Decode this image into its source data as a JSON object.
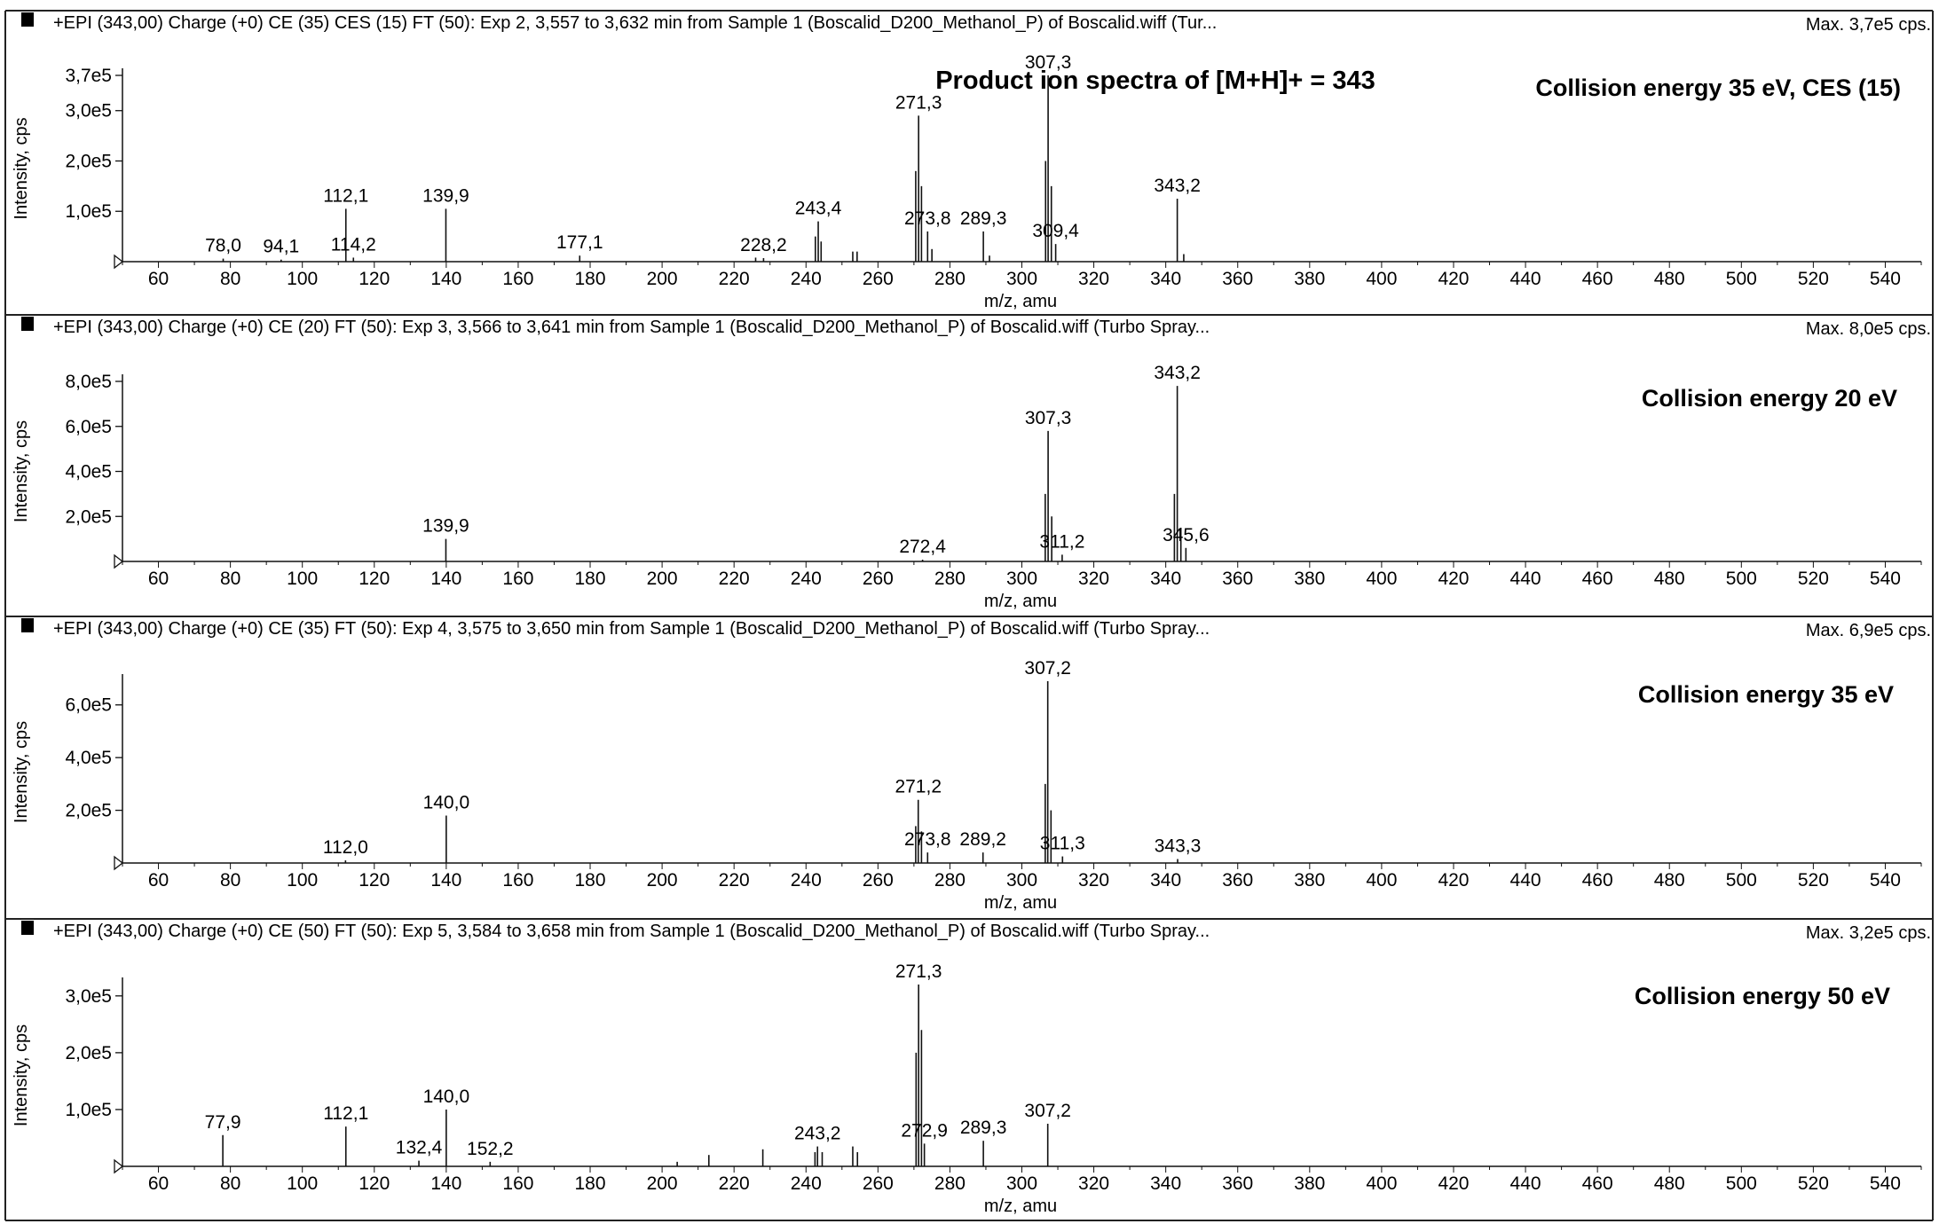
{
  "figure_title": "Product ion spectra of [M+H]+ = 343",
  "chart_data": [
    {
      "type": "bar",
      "header": "+EPI (343,00) Charge (+0) CE (35) CES (15) FT (50): Exp 2, 3,557 to 3,632 min from Sample 1 (Boscalid_D200_Methanol_P) of Boscalid.wiff (Tur...",
      "max_label": "Max. 3,7e5 cps.",
      "condition_label": "Collision energy 35 eV, CES (15)",
      "xlabel": "m/z, amu",
      "ylabel": "Intensity, cps",
      "xlim": [
        50,
        550
      ],
      "ylim": [
        0,
        370000
      ],
      "x_ticks": [
        60,
        80,
        100,
        120,
        140,
        160,
        180,
        200,
        220,
        240,
        260,
        280,
        300,
        320,
        340,
        360,
        380,
        400,
        420,
        440,
        460,
        480,
        500,
        520,
        540
      ],
      "y_ticks": [
        {
          "value": 100000,
          "label": "1,0e5"
        },
        {
          "value": 200000,
          "label": "2,0e5"
        },
        {
          "value": 300000,
          "label": "3,0e5"
        },
        {
          "value": 370000,
          "label": "3,7e5"
        }
      ],
      "peaks": [
        {
          "x": 78.0,
          "y": 6000,
          "label": "78,0"
        },
        {
          "x": 94.1,
          "y": 4000,
          "label": "94,1"
        },
        {
          "x": 112.1,
          "y": 105000,
          "label": "112,1"
        },
        {
          "x": 114.2,
          "y": 8000,
          "label": "114,2"
        },
        {
          "x": 139.9,
          "y": 105000,
          "label": "139,9"
        },
        {
          "x": 177.1,
          "y": 12000,
          "label": "177,1"
        },
        {
          "x": 226.0,
          "y": 8000,
          "label": ""
        },
        {
          "x": 228.2,
          "y": 7000,
          "label": "228,2"
        },
        {
          "x": 242.6,
          "y": 50000,
          "label": ""
        },
        {
          "x": 243.4,
          "y": 80000,
          "label": "243,4"
        },
        {
          "x": 244.2,
          "y": 40000,
          "label": ""
        },
        {
          "x": 253.0,
          "y": 20000,
          "label": ""
        },
        {
          "x": 254.2,
          "y": 20000,
          "label": ""
        },
        {
          "x": 270.5,
          "y": 180000,
          "label": ""
        },
        {
          "x": 271.3,
          "y": 290000,
          "label": "271,3"
        },
        {
          "x": 272.1,
          "y": 150000,
          "label": ""
        },
        {
          "x": 273.8,
          "y": 60000,
          "label": "273,8"
        },
        {
          "x": 275.0,
          "y": 25000,
          "label": ""
        },
        {
          "x": 289.3,
          "y": 60000,
          "label": "289,3"
        },
        {
          "x": 291.0,
          "y": 12000,
          "label": ""
        },
        {
          "x": 306.6,
          "y": 200000,
          "label": ""
        },
        {
          "x": 307.3,
          "y": 370000,
          "label": "307,3"
        },
        {
          "x": 308.2,
          "y": 150000,
          "label": ""
        },
        {
          "x": 309.4,
          "y": 35000,
          "label": "309,4"
        },
        {
          "x": 343.2,
          "y": 125000,
          "label": "343,2"
        },
        {
          "x": 345.0,
          "y": 15000,
          "label": ""
        }
      ]
    },
    {
      "type": "bar",
      "header": "+EPI (343,00) Charge (+0) CE (20) FT (50): Exp 3, 3,566 to 3,641 min from Sample 1 (Boscalid_D200_Methanol_P) of Boscalid.wiff (Turbo Spray...",
      "max_label": "Max. 8,0e5 cps.",
      "condition_label": "Collision energy 20 eV",
      "xlabel": "m/z, amu",
      "ylabel": "Intensity, cps",
      "xlim": [
        50,
        550
      ],
      "ylim": [
        0,
        800000
      ],
      "x_ticks": [
        60,
        80,
        100,
        120,
        140,
        160,
        180,
        200,
        220,
        240,
        260,
        280,
        300,
        320,
        340,
        360,
        380,
        400,
        420,
        440,
        460,
        480,
        500,
        520,
        540
      ],
      "y_ticks": [
        {
          "value": 200000,
          "label": "2,0e5"
        },
        {
          "value": 400000,
          "label": "4,0e5"
        },
        {
          "value": 600000,
          "label": "6,0e5"
        },
        {
          "value": 800000,
          "label": "8,0e5"
        }
      ],
      "peaks": [
        {
          "x": 139.9,
          "y": 100000,
          "label": "139,9"
        },
        {
          "x": 272.4,
          "y": 6000,
          "label": "272,4"
        },
        {
          "x": 306.5,
          "y": 300000,
          "label": ""
        },
        {
          "x": 307.3,
          "y": 580000,
          "label": "307,3"
        },
        {
          "x": 308.3,
          "y": 200000,
          "label": ""
        },
        {
          "x": 311.2,
          "y": 30000,
          "label": "311,2"
        },
        {
          "x": 342.4,
          "y": 300000,
          "label": ""
        },
        {
          "x": 343.2,
          "y": 780000,
          "label": "343,2"
        },
        {
          "x": 344.2,
          "y": 150000,
          "label": ""
        },
        {
          "x": 345.6,
          "y": 60000,
          "label": "345,6"
        }
      ]
    },
    {
      "type": "bar",
      "header": "+EPI (343,00) Charge (+0) CE (35) FT (50): Exp 4, 3,575 to 3,650 min from Sample 1 (Boscalid_D200_Methanol_P) of Boscalid.wiff (Turbo Spray...",
      "max_label": "Max. 6,9e5 cps.",
      "condition_label": "Collision energy 35 eV",
      "xlabel": "m/z, amu",
      "ylabel": "Intensity, cps",
      "xlim": [
        50,
        550
      ],
      "ylim": [
        0,
        690000
      ],
      "x_ticks": [
        60,
        80,
        100,
        120,
        140,
        160,
        180,
        200,
        220,
        240,
        260,
        280,
        300,
        320,
        340,
        360,
        380,
        400,
        420,
        440,
        460,
        480,
        500,
        520,
        540
      ],
      "y_ticks": [
        {
          "value": 200000,
          "label": "2,0e5"
        },
        {
          "value": 400000,
          "label": "4,0e5"
        },
        {
          "value": 600000,
          "label": "6,0e5"
        }
      ],
      "peaks": [
        {
          "x": 112.0,
          "y": 10000,
          "label": "112,0"
        },
        {
          "x": 140.0,
          "y": 180000,
          "label": "140,0"
        },
        {
          "x": 270.5,
          "y": 140000,
          "label": ""
        },
        {
          "x": 271.2,
          "y": 240000,
          "label": "271,2"
        },
        {
          "x": 272.1,
          "y": 120000,
          "label": ""
        },
        {
          "x": 273.8,
          "y": 40000,
          "label": "273,8"
        },
        {
          "x": 289.2,
          "y": 40000,
          "label": "289,2"
        },
        {
          "x": 306.5,
          "y": 300000,
          "label": ""
        },
        {
          "x": 307.2,
          "y": 690000,
          "label": "307,2"
        },
        {
          "x": 308.1,
          "y": 200000,
          "label": ""
        },
        {
          "x": 311.3,
          "y": 25000,
          "label": "311,3"
        },
        {
          "x": 343.3,
          "y": 15000,
          "label": "343,3"
        }
      ]
    },
    {
      "type": "bar",
      "header": "+EPI (343,00) Charge (+0) CE (50) FT (50): Exp 5, 3,584 to 3,658 min from Sample 1 (Boscalid_D200_Methanol_P) of Boscalid.wiff (Turbo Spray...",
      "max_label": "Max. 3,2e5 cps.",
      "condition_label": "Collision energy 50 eV",
      "xlabel": "m/z, amu",
      "ylabel": "Intensity, cps",
      "xlim": [
        50,
        550
      ],
      "ylim": [
        0,
        320000
      ],
      "x_ticks": [
        60,
        80,
        100,
        120,
        140,
        160,
        180,
        200,
        220,
        240,
        260,
        280,
        300,
        320,
        340,
        360,
        380,
        400,
        420,
        440,
        460,
        480,
        500,
        520,
        540
      ],
      "y_ticks": [
        {
          "value": 100000,
          "label": "1,0e5"
        },
        {
          "value": 200000,
          "label": "2,0e5"
        },
        {
          "value": 300000,
          "label": "3,0e5"
        }
      ],
      "peaks": [
        {
          "x": 77.9,
          "y": 55000,
          "label": "77,9"
        },
        {
          "x": 112.1,
          "y": 70000,
          "label": "112,1"
        },
        {
          "x": 132.4,
          "y": 10000,
          "label": "132,4"
        },
        {
          "x": 140.0,
          "y": 100000,
          "label": "140,0"
        },
        {
          "x": 152.2,
          "y": 8000,
          "label": "152,2"
        },
        {
          "x": 204.2,
          "y": 8000,
          "label": ""
        },
        {
          "x": 213.0,
          "y": 20000,
          "label": ""
        },
        {
          "x": 228.0,
          "y": 30000,
          "label": ""
        },
        {
          "x": 242.5,
          "y": 25000,
          "label": ""
        },
        {
          "x": 243.2,
          "y": 35000,
          "label": "243,2"
        },
        {
          "x": 244.5,
          "y": 25000,
          "label": ""
        },
        {
          "x": 253.0,
          "y": 35000,
          "label": ""
        },
        {
          "x": 254.3,
          "y": 25000,
          "label": ""
        },
        {
          "x": 270.6,
          "y": 200000,
          "label": ""
        },
        {
          "x": 271.3,
          "y": 320000,
          "label": "271,3"
        },
        {
          "x": 272.1,
          "y": 240000,
          "label": ""
        },
        {
          "x": 272.9,
          "y": 40000,
          "label": "272,9"
        },
        {
          "x": 289.3,
          "y": 45000,
          "label": "289,3"
        },
        {
          "x": 307.2,
          "y": 75000,
          "label": "307,2"
        }
      ]
    }
  ]
}
